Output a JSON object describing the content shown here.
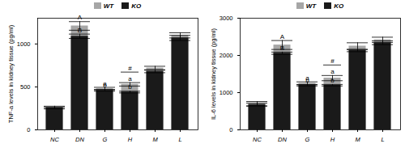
{
  "chart_data": [
    {
      "type": "bar",
      "y_label": "TNF-a levels in kidney tissue (pg/ml)",
      "categories": [
        "NC",
        "DN",
        "G",
        "H",
        "M",
        "L"
      ],
      "series": [
        {
          "name": "WT",
          "color": "#a6a6a6",
          "values": [
            260,
            1210,
            480,
            530,
            720,
            1100
          ],
          "errors": [
            15,
            50,
            15,
            20,
            20,
            30
          ]
        },
        {
          "name": "KO",
          "color": "#1a1a1a",
          "values": [
            255,
            1090,
            460,
            440,
            680,
            1070
          ],
          "errors": [
            10,
            25,
            10,
            10,
            15,
            30
          ]
        }
      ],
      "ylim": [
        0,
        1300
      ],
      "yticks": [
        0,
        500,
        1000
      ],
      "legend": "top",
      "annotations": [
        {
          "category": "DN",
          "series": "WT",
          "text": "A"
        },
        {
          "category": "DN",
          "series": "KO",
          "text": "B"
        },
        {
          "category": "G",
          "series": "WT",
          "text": "a"
        },
        {
          "category": "G",
          "series": "KO",
          "text": "b"
        },
        {
          "category": "H",
          "series": "WT",
          "text": "a"
        },
        {
          "category": "H",
          "series": "KO",
          "text": "b"
        }
      ],
      "brackets": [
        {
          "category": "H",
          "text": "#"
        }
      ]
    },
    {
      "type": "bar",
      "y_label": "IL-6 levels in kidney tissue (pg/ml)",
      "categories": [
        "NC",
        "DN",
        "G",
        "H",
        "M",
        "L"
      ],
      "series": [
        {
          "name": "WT",
          "color": "#a6a6a6",
          "values": [
            700,
            2280,
            1250,
            1390,
            2250,
            2420
          ],
          "errors": [
            60,
            120,
            40,
            70,
            90,
            70
          ]
        },
        {
          "name": "KO",
          "color": "#1a1a1a",
          "values": [
            680,
            2060,
            1200,
            1200,
            2130,
            2340
          ],
          "errors": [
            40,
            30,
            20,
            20,
            30,
            50
          ]
        }
      ],
      "ylim": [
        0,
        3000
      ],
      "yticks": [
        0,
        1000,
        2000,
        3000
      ],
      "legend": "top",
      "annotations": [
        {
          "category": "DN",
          "series": "WT",
          "text": "A"
        },
        {
          "category": "DN",
          "series": "KO",
          "text": "B"
        },
        {
          "category": "G",
          "series": "WT",
          "text": "a"
        },
        {
          "category": "G",
          "series": "KO",
          "text": "b"
        },
        {
          "category": "H",
          "series": "WT",
          "text": "a"
        },
        {
          "category": "H",
          "series": "KO",
          "text": "b"
        }
      ],
      "brackets": [
        {
          "category": "H",
          "text": "#"
        }
      ]
    }
  ]
}
